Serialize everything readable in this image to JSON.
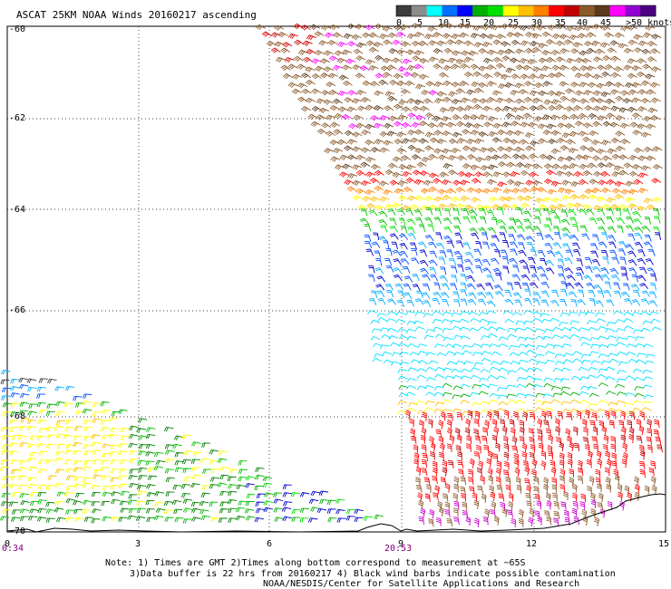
{
  "title": "ASCAT 25KM NOAA Winds 20160217 ascending",
  "colorbar": {
    "ticks": [
      "0",
      "5",
      "10",
      "15",
      "20",
      "25",
      "30",
      "35",
      "40",
      "45",
      ">50 knots"
    ],
    "colors": [
      "#3c3c3c",
      "#8c8c8c",
      "#00ffff",
      "#0070ff",
      "#0000ff",
      "#00b000",
      "#00e000",
      "#ffff00",
      "#ffc000",
      "#ff8000",
      "#ff0000",
      "#c00000",
      "#8b5a2b",
      "#5a3a1a",
      "#ff00ff",
      "#9400d3",
      "#4b0082"
    ]
  },
  "y_axis": {
    "labels": [
      "-60",
      "-62",
      "-64",
      "-66",
      "-68",
      "-70"
    ],
    "values": [
      -60,
      -62,
      -64,
      -66,
      -68,
      -70
    ]
  },
  "x_axis": {
    "labels": [
      "0",
      "3",
      "6",
      "9",
      "12",
      "15"
    ],
    "values": [
      0,
      3,
      6,
      9,
      12,
      15
    ]
  },
  "time_labels": {
    "left": "0:34",
    "right": "20:53"
  },
  "notes": {
    "line1": "Note: 1) Times are GMT 2)Times along bottom correspond to measurement at ~65S",
    "line2": "3)Data buffer is 22 hrs from 20160217 4) Black wind barbs indicate possible contamination",
    "line3": "NOAA/NESDIS/Center for Satellite Applications and Research"
  }
}
